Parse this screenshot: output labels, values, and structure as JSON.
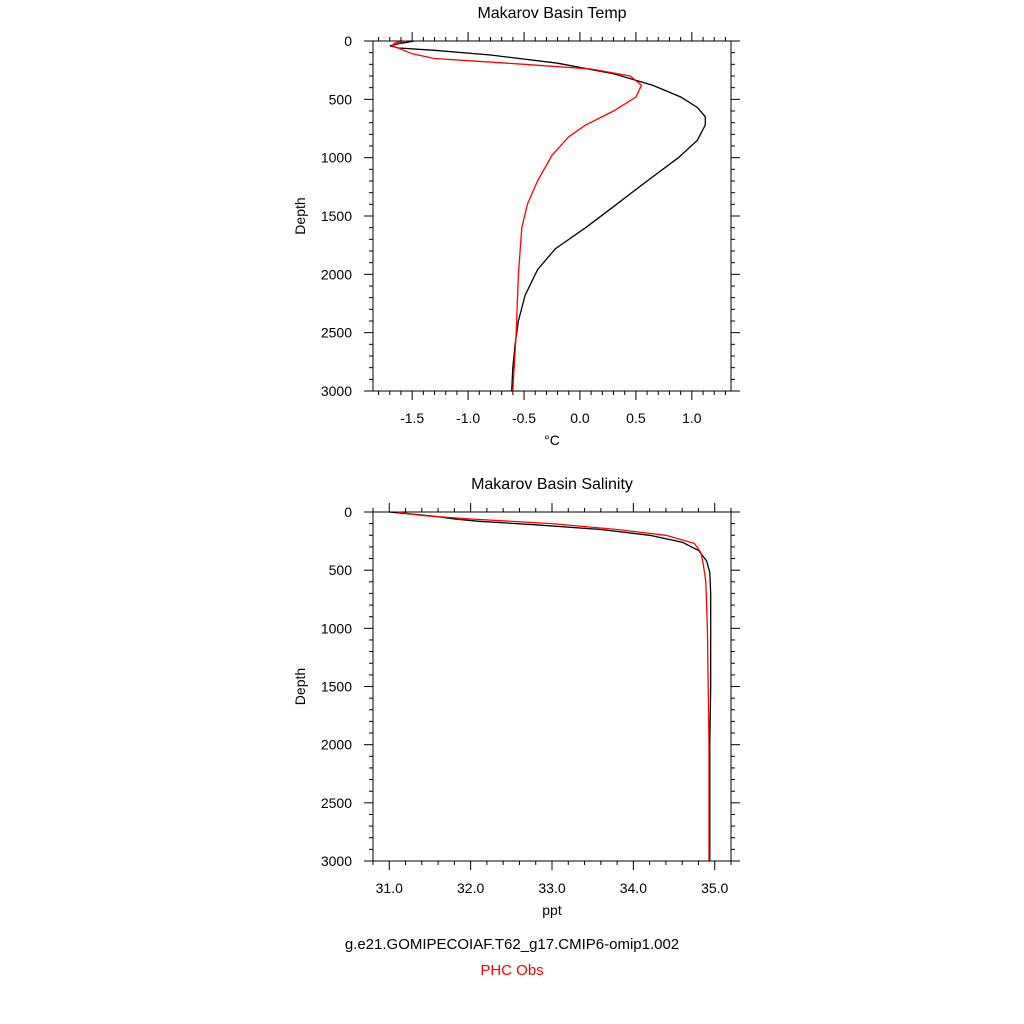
{
  "chart_data": [
    {
      "type": "line",
      "title": "Makarov Basin Temp",
      "xlabel": "°C",
      "ylabel": "Depth",
      "xlim": [
        -1.85,
        1.35
      ],
      "ylim": [
        3000,
        0
      ],
      "xticks": [
        -1.5,
        -1.0,
        -0.5,
        0.0,
        0.5,
        1.0
      ],
      "xtick_labels": [
        "-1.5",
        "-1.0",
        "-0.5",
        "0.0",
        "0.5",
        "1.0"
      ],
      "yticks": [
        0,
        500,
        1000,
        1500,
        2000,
        2500,
        3000
      ],
      "ytick_labels": [
        "0",
        "500",
        "1000",
        "1500",
        "2000",
        "2500",
        "3000"
      ],
      "series": [
        {
          "name": "g.e21.GOMIPECOIAF.T62_g17.CMIP6-omip1.002",
          "color": "#000000",
          "points": [
            [
              -1.48,
              0
            ],
            [
              -1.6,
              20
            ],
            [
              -1.7,
              40
            ],
            [
              -1.62,
              60
            ],
            [
              -1.3,
              80
            ],
            [
              -0.8,
              120
            ],
            [
              -0.2,
              190
            ],
            [
              0.3,
              280
            ],
            [
              0.65,
              380
            ],
            [
              0.9,
              480
            ],
            [
              1.05,
              570
            ],
            [
              1.12,
              650
            ],
            [
              1.12,
              720
            ],
            [
              1.05,
              850
            ],
            [
              0.88,
              1000
            ],
            [
              0.6,
              1200
            ],
            [
              0.3,
              1420
            ],
            [
              0.05,
              1600
            ],
            [
              -0.22,
              1780
            ],
            [
              -0.38,
              1960
            ],
            [
              -0.49,
              2180
            ],
            [
              -0.55,
              2400
            ],
            [
              -0.58,
              2600
            ],
            [
              -0.6,
              2800
            ],
            [
              -0.61,
              3000
            ]
          ]
        },
        {
          "name": "PHC Obs",
          "color": "#ff0000",
          "points": [
            [
              -1.55,
              0
            ],
            [
              -1.65,
              15
            ],
            [
              -1.68,
              40
            ],
            [
              -1.6,
              70
            ],
            [
              -1.5,
              110
            ],
            [
              -1.3,
              150
            ],
            [
              -0.5,
              200
            ],
            [
              0.1,
              240
            ],
            [
              0.45,
              300
            ],
            [
              0.55,
              380
            ],
            [
              0.5,
              480
            ],
            [
              0.3,
              600
            ],
            [
              0.05,
              720
            ],
            [
              -0.1,
              820
            ],
            [
              -0.25,
              980
            ],
            [
              -0.38,
              1200
            ],
            [
              -0.47,
              1400
            ],
            [
              -0.52,
              1600
            ],
            [
              -0.55,
              2000
            ],
            [
              -0.57,
              2500
            ],
            [
              -0.6,
              3000
            ]
          ]
        }
      ]
    },
    {
      "type": "line",
      "title": "Makarov Basin Salinity",
      "xlabel": "ppt",
      "ylabel": "Depth",
      "xlim": [
        30.8,
        35.2
      ],
      "ylim": [
        3000,
        0
      ],
      "xticks": [
        31.0,
        32.0,
        33.0,
        34.0,
        35.0
      ],
      "xtick_labels": [
        "31.0",
        "32.0",
        "33.0",
        "34.0",
        "35.0"
      ],
      "yticks": [
        0,
        500,
        1000,
        1500,
        2000,
        2500,
        3000
      ],
      "ytick_labels": [
        "0",
        "500",
        "1000",
        "1500",
        "2000",
        "2500",
        "3000"
      ],
      "series": [
        {
          "name": "g.e21.GOMIPECOIAF.T62_g17.CMIP6-omip1.002",
          "color": "#000000",
          "points": [
            [
              31.0,
              0
            ],
            [
              31.3,
              20
            ],
            [
              31.6,
              40
            ],
            [
              31.8,
              60
            ],
            [
              32.1,
              80
            ],
            [
              32.8,
              110
            ],
            [
              33.6,
              150
            ],
            [
              34.2,
              200
            ],
            [
              34.6,
              260
            ],
            [
              34.8,
              330
            ],
            [
              34.9,
              420
            ],
            [
              34.94,
              520
            ],
            [
              34.95,
              700
            ],
            [
              34.95,
              1000
            ],
            [
              34.95,
              1500
            ],
            [
              34.94,
              2000
            ],
            [
              34.94,
              2500
            ],
            [
              34.94,
              3000
            ]
          ]
        },
        {
          "name": "PHC Obs",
          "color": "#ff0000",
          "points": [
            [
              31.1,
              0
            ],
            [
              31.4,
              30
            ],
            [
              32.0,
              60
            ],
            [
              33.0,
              100
            ],
            [
              33.8,
              150
            ],
            [
              34.4,
              200
            ],
            [
              34.75,
              270
            ],
            [
              34.83,
              350
            ],
            [
              34.86,
              450
            ],
            [
              34.89,
              600
            ],
            [
              34.91,
              1000
            ],
            [
              34.92,
              1500
            ],
            [
              34.93,
              2000
            ],
            [
              34.93,
              3000
            ]
          ]
        }
      ]
    }
  ],
  "legend": {
    "model_label": "g.e21.GOMIPECOIAF.T62_g17.CMIP6-omip1.002",
    "obs_label": "PHC Obs",
    "model_color": "#000000",
    "obs_color": "#ff0000"
  }
}
